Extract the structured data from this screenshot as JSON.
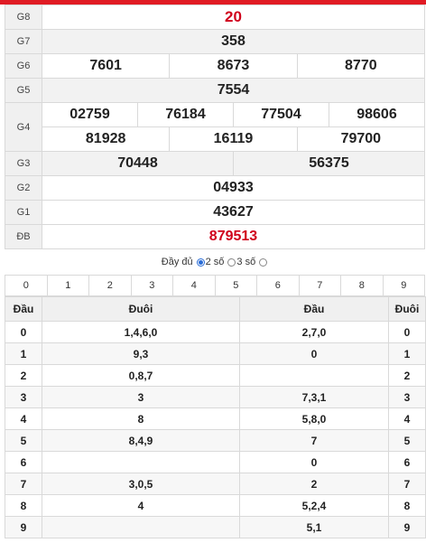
{
  "prizes": {
    "g8": {
      "label": "G8",
      "values": [
        "20"
      ]
    },
    "g7": {
      "label": "G7",
      "values": [
        "358"
      ]
    },
    "g6": {
      "label": "G6",
      "values": [
        "7601",
        "8673",
        "8770"
      ]
    },
    "g5": {
      "label": "G5",
      "values": [
        "7554"
      ]
    },
    "g4": {
      "label": "G4",
      "values": [
        "02759",
        "76184",
        "77504",
        "98606",
        "81928",
        "16119",
        "79700"
      ]
    },
    "g3": {
      "label": "G3",
      "values": [
        "70448",
        "56375"
      ]
    },
    "g2": {
      "label": "G2",
      "values": [
        "04933"
      ]
    },
    "g1": {
      "label": "G1",
      "values": [
        "43627"
      ]
    },
    "db": {
      "label": "ĐB",
      "values": [
        "879513"
      ]
    }
  },
  "colors": {
    "accent": "#d0021b",
    "topbar": "#e01b24",
    "radio": "#2a6cd6"
  },
  "mode": {
    "full": "Đầy đủ",
    "two": "2 số",
    "three": "3 số",
    "selected": "2 số"
  },
  "digits": [
    "0",
    "1",
    "2",
    "3",
    "4",
    "5",
    "6",
    "7",
    "8",
    "9"
  ],
  "loto": {
    "headers": {
      "dau": "Đầu",
      "duoi": "Đuôi",
      "dau2": "Đầu",
      "duoi2": "Đuôi"
    },
    "rows": [
      {
        "left": "0",
        "tails": "1,4,6,0",
        "heads": "2,7,0",
        "right": "0"
      },
      {
        "left": "1",
        "tails": "9,3",
        "heads": "0",
        "right": "1"
      },
      {
        "left": "2",
        "tails": "0,8,7",
        "heads": "",
        "right": "2"
      },
      {
        "left": "3",
        "tails": "3",
        "heads": "7,3,1",
        "right": "3"
      },
      {
        "left": "4",
        "tails": "8",
        "heads": "5,8,0",
        "right": "4"
      },
      {
        "left": "5",
        "tails": "8,4,9",
        "heads": "7",
        "right": "5"
      },
      {
        "left": "6",
        "tails": "",
        "heads": "0",
        "right": "6"
      },
      {
        "left": "7",
        "tails": "3,0,5",
        "heads": "2",
        "right": "7"
      },
      {
        "left": "8",
        "tails": "4",
        "heads": "5,2,4",
        "right": "8"
      },
      {
        "left": "9",
        "tails": "",
        "heads": "5,1",
        "right": "9"
      }
    ]
  }
}
